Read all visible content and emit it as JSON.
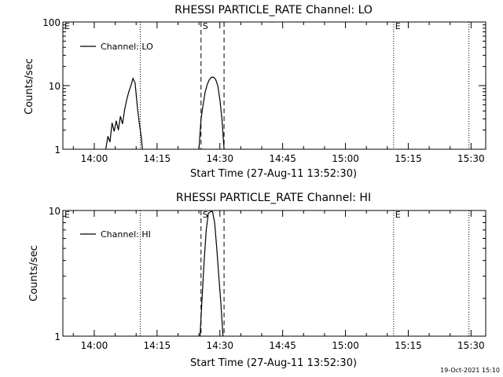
{
  "footer": {
    "timestamp": "19-Oct-2021 15:10"
  },
  "chart_data": [
    {
      "type": "line",
      "title": "RHESSI PARTICLE_RATE Channel: LO",
      "xlabel": "Start Time (27-Aug-11 13:52:30)",
      "ylabel": "Counts/sec",
      "scale_y": "log",
      "xlim": [
        "13:52:30",
        "15:33:30"
      ],
      "ylim": [
        1,
        100
      ],
      "x_ticks": [
        "14:00",
        "14:15",
        "14:30",
        "14:45",
        "15:00",
        "15:15",
        "15:30"
      ],
      "y_ticks": [
        "1",
        "10",
        "100"
      ],
      "legend": {
        "placement": "top-left",
        "entries": [
          "Channel: LO"
        ]
      },
      "markers": [
        {
          "label": "E",
          "time": "13:52:30",
          "style": "dotted"
        },
        {
          "label": "",
          "time": "14:11:00",
          "style": "dotted"
        },
        {
          "label": "S",
          "time": "14:25:30",
          "style": "dashed"
        },
        {
          "label": "",
          "time": "14:31:00",
          "style": "dashed"
        },
        {
          "label": "E",
          "time": "15:11:30",
          "style": "dotted"
        },
        {
          "label": "",
          "time": "15:29:30",
          "style": "dotted"
        }
      ],
      "series": [
        {
          "name": "Channel: LO",
          "points": [
            [
              "14:02:45",
              1.0
            ],
            [
              "14:03:15",
              1.6
            ],
            [
              "14:03:45",
              1.3
            ],
            [
              "14:04:15",
              2.6
            ],
            [
              "14:04:45",
              1.9
            ],
            [
              "14:05:15",
              2.8
            ],
            [
              "14:05:45",
              2.0
            ],
            [
              "14:06:15",
              3.3
            ],
            [
              "14:06:45",
              2.5
            ],
            [
              "14:07:15",
              4.2
            ],
            [
              "14:07:45",
              6.0
            ],
            [
              "14:08:15",
              8.0
            ],
            [
              "14:08:45",
              10.0
            ],
            [
              "14:09:15",
              13.0
            ],
            [
              "14:09:45",
              11.0
            ],
            [
              "14:10:15",
              5.0
            ],
            [
              "14:10:45",
              2.6
            ],
            [
              "14:11:15",
              1.5
            ],
            [
              "14:11:30",
              1.0
            ]
          ]
        },
        {
          "name": "Channel: LO",
          "points": [
            [
              "14:25:00",
              1.0
            ],
            [
              "14:25:30",
              3.0
            ],
            [
              "14:26:00",
              5.0
            ],
            [
              "14:26:30",
              8.0
            ],
            [
              "14:27:00",
              10.5
            ],
            [
              "14:27:30",
              12.5
            ],
            [
              "14:28:00",
              13.5
            ],
            [
              "14:28:30",
              13.5
            ],
            [
              "14:29:00",
              12.5
            ],
            [
              "14:29:30",
              10.0
            ],
            [
              "14:30:00",
              6.0
            ],
            [
              "14:30:30",
              3.0
            ],
            [
              "14:31:00",
              1.0
            ]
          ]
        }
      ]
    },
    {
      "type": "line",
      "title": "RHESSI PARTICLE_RATE Channel: HI",
      "xlabel": "Start Time (27-Aug-11 13:52:30)",
      "ylabel": "Counts/sec",
      "scale_y": "log",
      "xlim": [
        "13:52:30",
        "15:33:30"
      ],
      "ylim": [
        1,
        10
      ],
      "x_ticks": [
        "14:00",
        "14:15",
        "14:30",
        "14:45",
        "15:00",
        "15:15",
        "15:30"
      ],
      "y_ticks": [
        "1",
        "10"
      ],
      "legend": {
        "placement": "top-left",
        "entries": [
          "Channel: HI"
        ]
      },
      "markers": [
        {
          "label": "E",
          "time": "13:52:30",
          "style": "dotted"
        },
        {
          "label": "",
          "time": "14:11:00",
          "style": "dotted"
        },
        {
          "label": "S",
          "time": "14:25:30",
          "style": "dashed"
        },
        {
          "label": "",
          "time": "14:31:00",
          "style": "dashed"
        },
        {
          "label": "E",
          "time": "15:11:30",
          "style": "dotted"
        },
        {
          "label": "",
          "time": "15:29:30",
          "style": "dotted"
        }
      ],
      "series": [
        {
          "name": "Channel: HI",
          "points": [
            [
              "14:25:15",
              1.0
            ],
            [
              "14:25:45",
              2.0
            ],
            [
              "14:26:15",
              4.0
            ],
            [
              "14:26:45",
              7.0
            ],
            [
              "14:27:15",
              9.5
            ],
            [
              "14:27:45",
              9.8
            ],
            [
              "14:28:15",
              9.8
            ],
            [
              "14:28:45",
              8.0
            ],
            [
              "14:29:15",
              5.0
            ],
            [
              "14:29:45",
              3.0
            ],
            [
              "14:30:15",
              1.8
            ],
            [
              "14:30:45",
              1.0
            ]
          ]
        }
      ]
    }
  ]
}
